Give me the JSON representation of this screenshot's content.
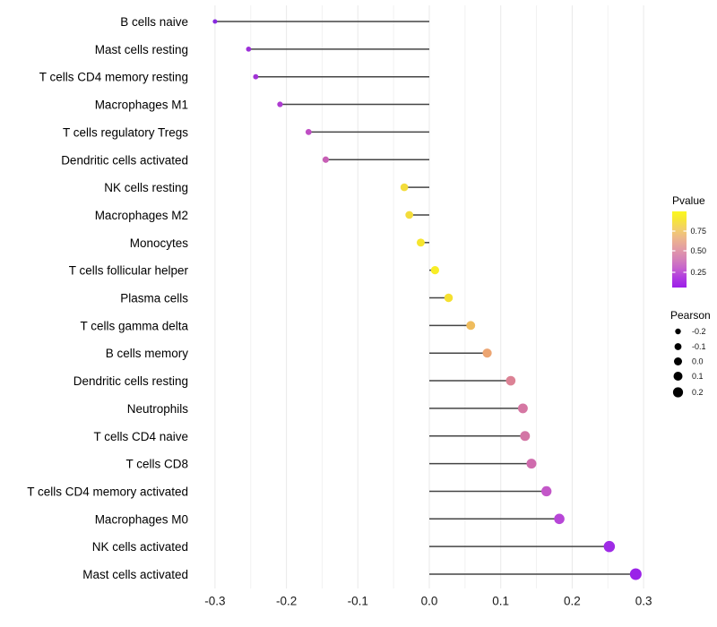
{
  "figure": {
    "background": "#FFFFFF",
    "title": ""
  },
  "chart_data": {
    "type": "scatter",
    "variant": "lollipop (horizontal dot-and-stem chart of immune cell fractions)",
    "title": "",
    "xlabel": "",
    "ylabel": "",
    "xlim": [
      -0.33,
      0.33
    ],
    "x_ticks": [
      -0.3,
      -0.2,
      -0.1,
      0.0,
      0.1,
      0.2,
      0.3
    ],
    "x_tick_labels": [
      "-0.3",
      "-0.2",
      "-0.1",
      "0.0",
      "0.1",
      "0.2",
      "0.3"
    ],
    "grid": "vertical gridlines only, every 0.05, light gray, no axis lines or tick marks",
    "stem_color": "#444444",
    "point_color_encodes": "Pvalue",
    "point_size_encodes": "Pearson",
    "points": [
      {
        "label": "B cells naive",
        "pearson": -0.3,
        "pvalue_est": 0.1,
        "color": "#8729DF"
      },
      {
        "label": "Mast cells resting",
        "pearson": -0.253,
        "pvalue_est": 0.15,
        "color": "#9C2FD9"
      },
      {
        "label": "T cells CD4 memory resting",
        "pearson": -0.243,
        "pvalue_est": 0.16,
        "color": "#A133D6"
      },
      {
        "label": "Macrophages M1",
        "pearson": -0.209,
        "pvalue_est": 0.22,
        "color": "#AE3BD1"
      },
      {
        "label": "T cells regulatory  Tregs",
        "pearson": -0.169,
        "pvalue_est": 0.32,
        "color": "#BF4EC4"
      },
      {
        "label": "Dendritic cells activated",
        "pearson": -0.145,
        "pvalue_est": 0.38,
        "color": "#C75FB5"
      },
      {
        "label": "NK cells resting",
        "pearson": -0.035,
        "pvalue_est": 0.82,
        "color": "#F3DC3B"
      },
      {
        "label": "Macrophages M2",
        "pearson": -0.028,
        "pvalue_est": 0.82,
        "color": "#F3DC3B"
      },
      {
        "label": "Monocytes",
        "pearson": -0.012,
        "pvalue_est": 0.87,
        "color": "#F6E52E"
      },
      {
        "label": "T cells follicular helper",
        "pearson": 0.008,
        "pvalue_est": 0.92,
        "color": "#F8ED26"
      },
      {
        "label": "Plasma cells",
        "pearson": 0.027,
        "pvalue_est": 0.85,
        "color": "#F5E030"
      },
      {
        "label": "T cells gamma delta",
        "pearson": 0.058,
        "pvalue_est": 0.68,
        "color": "#EFBC5D"
      },
      {
        "label": "B cells memory",
        "pearson": 0.081,
        "pvalue_est": 0.62,
        "color": "#ECA572"
      },
      {
        "label": "Dendritic cells resting",
        "pearson": 0.114,
        "pvalue_est": 0.5,
        "color": "#DC8295"
      },
      {
        "label": "Neutrophils",
        "pearson": 0.131,
        "pvalue_est": 0.45,
        "color": "#D577A3"
      },
      {
        "label": "T cells CD4 naive",
        "pearson": 0.134,
        "pvalue_est": 0.44,
        "color": "#D375A5"
      },
      {
        "label": "T cells CD8",
        "pearson": 0.143,
        "pvalue_est": 0.41,
        "color": "#CF6BAD"
      },
      {
        "label": "T cells CD4 memory activated",
        "pearson": 0.164,
        "pvalue_est": 0.33,
        "color": "#C357C8"
      },
      {
        "label": "Macrophages M0",
        "pearson": 0.182,
        "pvalue_est": 0.27,
        "color": "#B746D7"
      },
      {
        "label": "NK cells activated",
        "pearson": 0.252,
        "pvalue_est": 0.12,
        "color": "#9F2BE6"
      },
      {
        "label": "Mast cells activated",
        "pearson": 0.289,
        "pvalue_est": 0.08,
        "color": "#9A22E8"
      }
    ],
    "legend": {
      "position": "right, vertically centered",
      "pvalue": {
        "title": "Pvalue",
        "tick_labels": [
          "0.75",
          "0.50",
          "0.25"
        ],
        "gradient_top_to_bottom": [
          {
            "offset": 0.0,
            "color": "#FBF821"
          },
          {
            "offset": 0.1,
            "color": "#F7E733"
          },
          {
            "offset": 0.22,
            "color": "#F3D265"
          },
          {
            "offset": 0.35,
            "color": "#EDB78B"
          },
          {
            "offset": 0.5,
            "color": "#E29AA6"
          },
          {
            "offset": 0.62,
            "color": "#D583B7"
          },
          {
            "offset": 0.74,
            "color": "#C765CC"
          },
          {
            "offset": 0.87,
            "color": "#B03BE0"
          },
          {
            "offset": 1.0,
            "color": "#9C1FE8"
          }
        ]
      },
      "pearson": {
        "title": "Pearson",
        "size_labels": [
          "-0.2",
          "-0.1",
          "0.0",
          "0.1",
          "0.2"
        ],
        "dot_color": "#000000"
      }
    },
    "gridline_major_color": "#E9E9E9",
    "gridline_minor_color": "#F2F2F2",
    "axis_text_color": "#1A1A1A"
  }
}
